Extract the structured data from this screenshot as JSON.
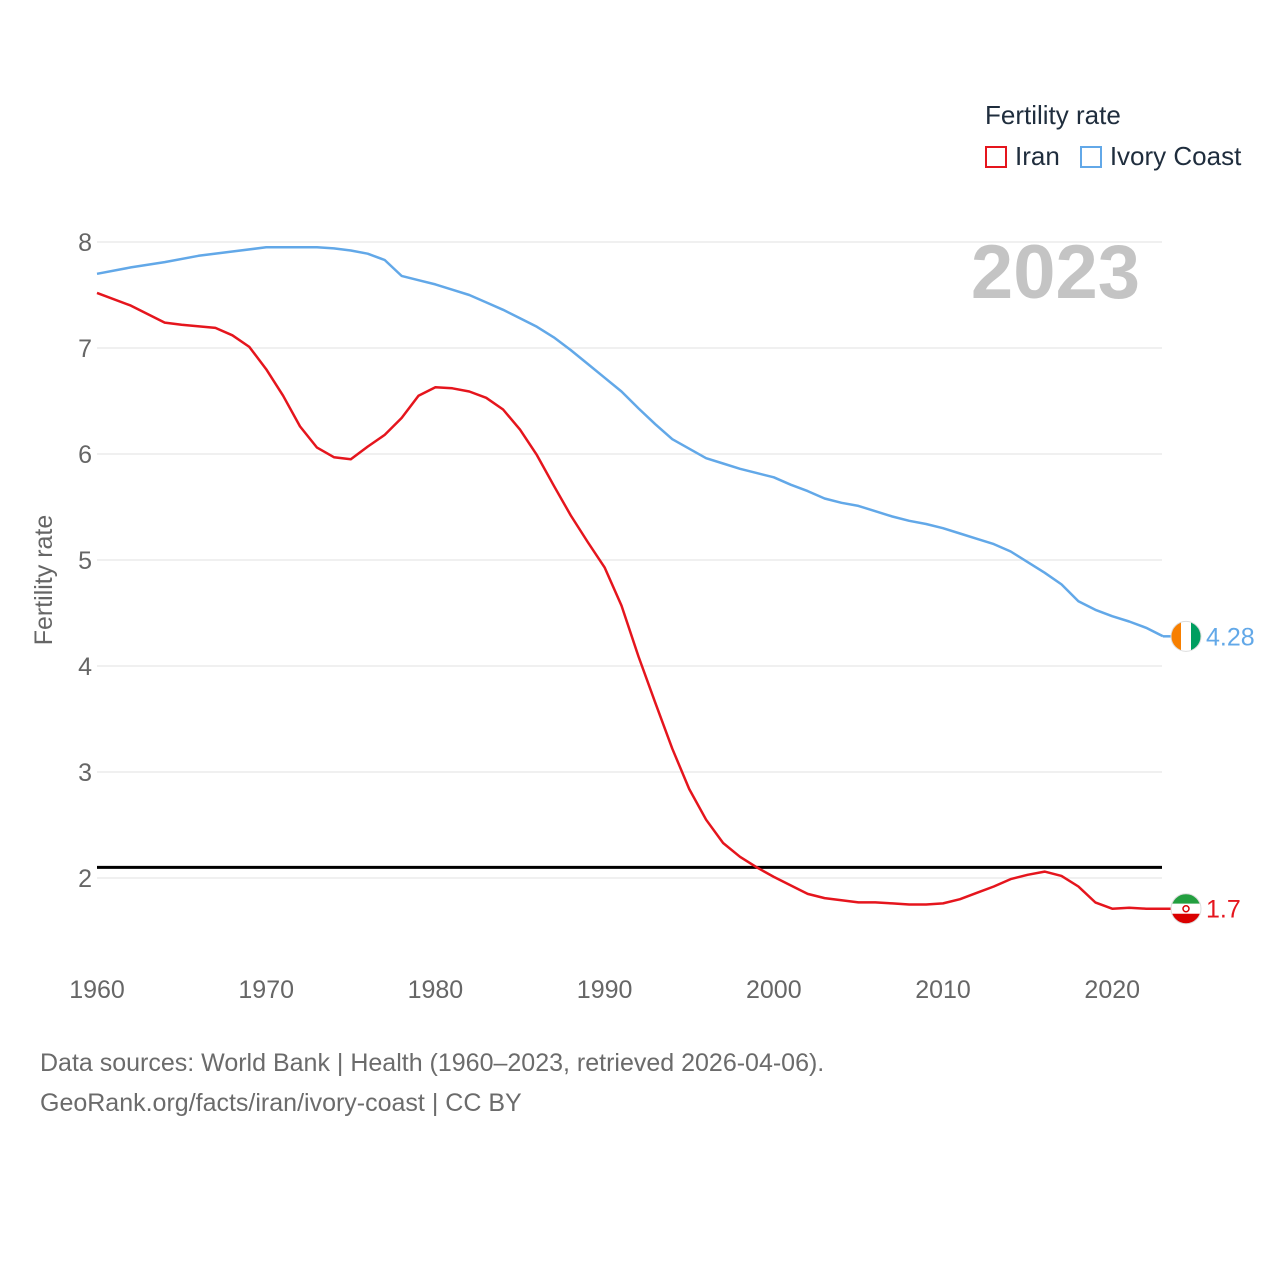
{
  "chart_data": {
    "type": "line",
    "big_year_label": "2023",
    "ylabel": "Fertility rate",
    "xlabel": "",
    "xlim": [
      1960,
      2023
    ],
    "ylim": [
      1.3,
      8.2
    ],
    "x_ticks": [
      1960,
      1970,
      1980,
      1990,
      2000,
      2010,
      2020
    ],
    "y_ticks": [
      2,
      3,
      4,
      5,
      6,
      7,
      8
    ],
    "reference_line": {
      "y": 2.1,
      "color": "#000000"
    },
    "legend": {
      "title": "Fertility rate",
      "position": "top-right"
    },
    "series": [
      {
        "name": "Iran",
        "color": "#e5151d",
        "end_label": "1.7",
        "points": [
          [
            1960,
            7.52
          ],
          [
            1962,
            7.4
          ],
          [
            1964,
            7.24
          ],
          [
            1965,
            7.22
          ],
          [
            1967,
            7.19
          ],
          [
            1968,
            7.12
          ],
          [
            1969,
            7.01
          ],
          [
            1970,
            6.8
          ],
          [
            1971,
            6.55
          ],
          [
            1972,
            6.26
          ],
          [
            1973,
            6.06
          ],
          [
            1974,
            5.97
          ],
          [
            1975,
            5.95
          ],
          [
            1976,
            6.07
          ],
          [
            1977,
            6.18
          ],
          [
            1978,
            6.34
          ],
          [
            1979,
            6.55
          ],
          [
            1980,
            6.63
          ],
          [
            1981,
            6.62
          ],
          [
            1982,
            6.59
          ],
          [
            1983,
            6.53
          ],
          [
            1984,
            6.42
          ],
          [
            1985,
            6.23
          ],
          [
            1986,
            5.99
          ],
          [
            1987,
            5.7
          ],
          [
            1988,
            5.42
          ],
          [
            1989,
            5.17
          ],
          [
            1990,
            4.93
          ],
          [
            1991,
            4.57
          ],
          [
            1992,
            4.09
          ],
          [
            1993,
            3.65
          ],
          [
            1994,
            3.22
          ],
          [
            1995,
            2.84
          ],
          [
            1996,
            2.55
          ],
          [
            1997,
            2.33
          ],
          [
            1998,
            2.2
          ],
          [
            1999,
            2.1
          ],
          [
            2000,
            2.01
          ],
          [
            2001,
            1.93
          ],
          [
            2002,
            1.85
          ],
          [
            2003,
            1.81
          ],
          [
            2004,
            1.79
          ],
          [
            2005,
            1.77
          ],
          [
            2006,
            1.77
          ],
          [
            2007,
            1.76
          ],
          [
            2008,
            1.75
          ],
          [
            2009,
            1.75
          ],
          [
            2010,
            1.76
          ],
          [
            2011,
            1.8
          ],
          [
            2012,
            1.86
          ],
          [
            2013,
            1.92
          ],
          [
            2014,
            1.99
          ],
          [
            2015,
            2.03
          ],
          [
            2016,
            2.06
          ],
          [
            2017,
            2.02
          ],
          [
            2018,
            1.92
          ],
          [
            2019,
            1.77
          ],
          [
            2020,
            1.71
          ],
          [
            2021,
            1.72
          ],
          [
            2022,
            1.71
          ],
          [
            2023,
            1.71
          ]
        ]
      },
      {
        "name": "Ivory Coast",
        "color": "#62a8e8",
        "end_label": "4.28",
        "points": [
          [
            1960,
            7.7
          ],
          [
            1962,
            7.76
          ],
          [
            1964,
            7.81
          ],
          [
            1966,
            7.87
          ],
          [
            1968,
            7.91
          ],
          [
            1970,
            7.95
          ],
          [
            1971,
            7.95
          ],
          [
            1972,
            7.95
          ],
          [
            1973,
            7.95
          ],
          [
            1974,
            7.94
          ],
          [
            1975,
            7.92
          ],
          [
            1976,
            7.89
          ],
          [
            1977,
            7.83
          ],
          [
            1978,
            7.68
          ],
          [
            1979,
            7.64
          ],
          [
            1980,
            7.6
          ],
          [
            1981,
            7.55
          ],
          [
            1982,
            7.5
          ],
          [
            1983,
            7.43
          ],
          [
            1984,
            7.36
          ],
          [
            1985,
            7.28
          ],
          [
            1986,
            7.2
          ],
          [
            1987,
            7.1
          ],
          [
            1988,
            6.98
          ],
          [
            1989,
            6.85
          ],
          [
            1990,
            6.72
          ],
          [
            1991,
            6.59
          ],
          [
            1992,
            6.43
          ],
          [
            1993,
            6.28
          ],
          [
            1994,
            6.14
          ],
          [
            1995,
            6.05
          ],
          [
            1996,
            5.96
          ],
          [
            1997,
            5.91
          ],
          [
            1998,
            5.86
          ],
          [
            1999,
            5.82
          ],
          [
            2000,
            5.78
          ],
          [
            2001,
            5.71
          ],
          [
            2002,
            5.65
          ],
          [
            2003,
            5.58
          ],
          [
            2004,
            5.54
          ],
          [
            2005,
            5.51
          ],
          [
            2006,
            5.46
          ],
          [
            2007,
            5.41
          ],
          [
            2008,
            5.37
          ],
          [
            2009,
            5.34
          ],
          [
            2010,
            5.3
          ],
          [
            2011,
            5.25
          ],
          [
            2012,
            5.2
          ],
          [
            2013,
            5.15
          ],
          [
            2014,
            5.08
          ],
          [
            2015,
            4.98
          ],
          [
            2016,
            4.88
          ],
          [
            2017,
            4.77
          ],
          [
            2018,
            4.61
          ],
          [
            2019,
            4.53
          ],
          [
            2020,
            4.47
          ],
          [
            2021,
            4.42
          ],
          [
            2022,
            4.36
          ],
          [
            2023,
            4.28
          ]
        ]
      }
    ]
  },
  "footer": {
    "line1": "Data sources: World Bank | Health (1960–2023, retrieved 2026-04-06).",
    "line2": "GeoRank.org/facts/iran/ivory-coast | CC BY"
  }
}
